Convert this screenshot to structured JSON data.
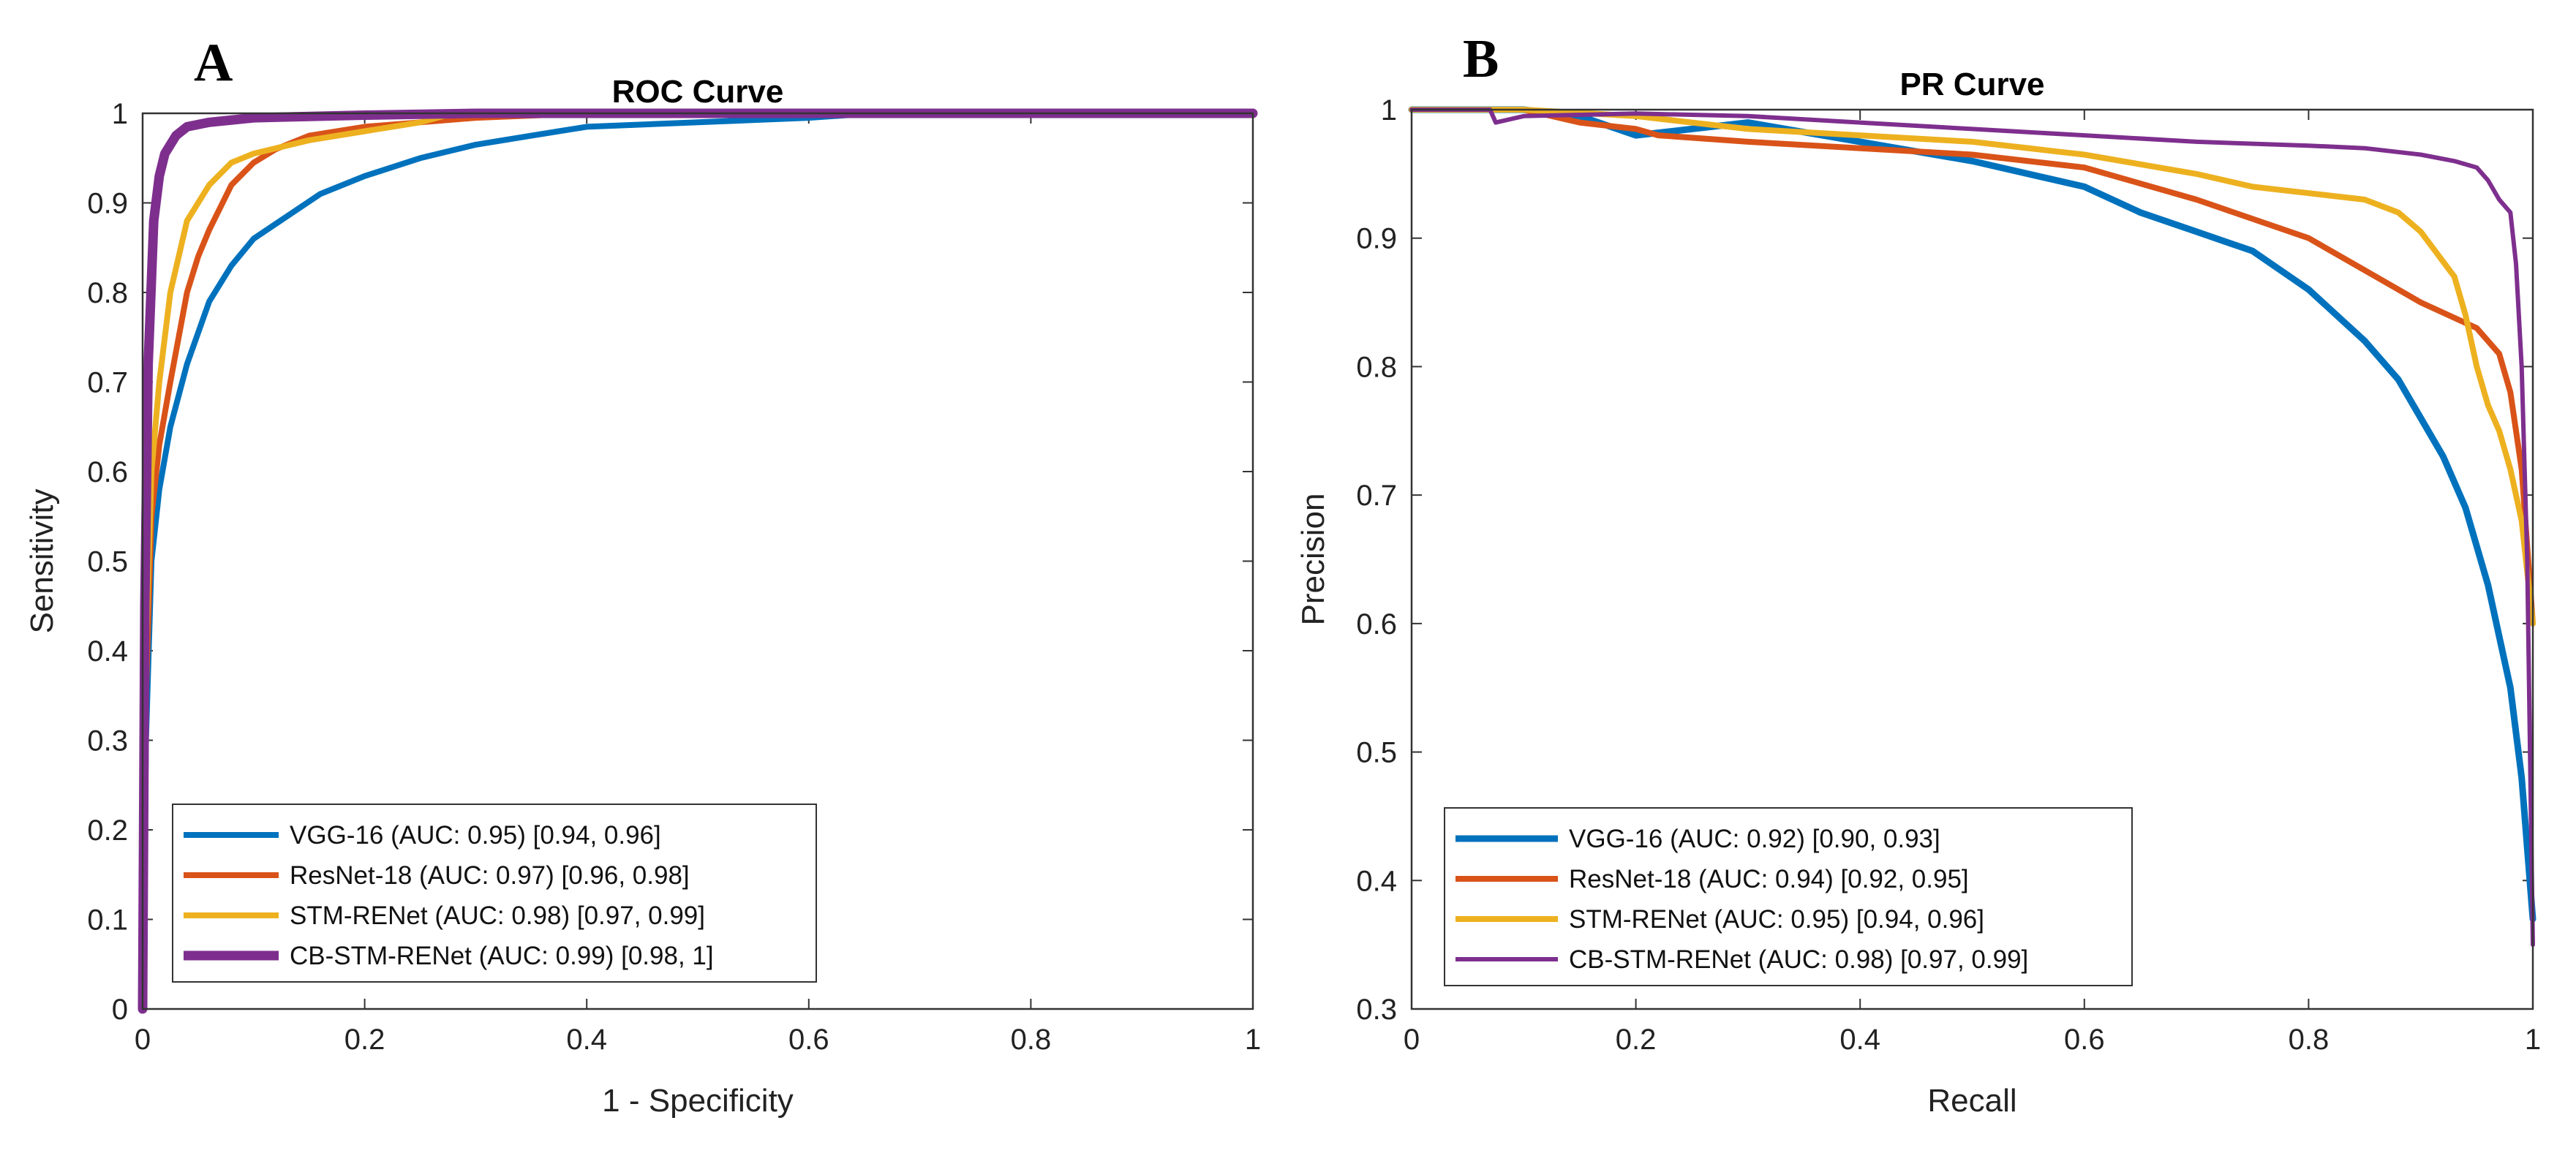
{
  "chart_data": [
    {
      "type": "line",
      "panel": "A",
      "title": "ROC Curve",
      "xlabel": "1 - Specificity",
      "ylabel": "Sensitivity",
      "xlim": [
        0,
        1
      ],
      "ylim": [
        0,
        1
      ],
      "x_ticks": [
        "0",
        "0.2",
        "0.4",
        "0.6",
        "0.8",
        "1"
      ],
      "y_ticks": [
        "0",
        "0.1",
        "0.2",
        "0.3",
        "0.4",
        "0.5",
        "0.6",
        "0.7",
        "0.8",
        "0.9",
        "1"
      ],
      "legend_position": "bottom-left",
      "series": [
        {
          "name": "VGG-16 (AUC: 0.95) [0.94, 0.96]",
          "color": "#0072BD",
          "x": [
            0,
            0.003,
            0.008,
            0.015,
            0.025,
            0.04,
            0.06,
            0.08,
            0.1,
            0.13,
            0.16,
            0.2,
            0.25,
            0.3,
            0.35,
            0.4,
            0.5,
            0.6,
            0.66,
            1
          ],
          "y": [
            0,
            0.3,
            0.5,
            0.58,
            0.65,
            0.72,
            0.79,
            0.83,
            0.86,
            0.885,
            0.91,
            0.93,
            0.95,
            0.965,
            0.975,
            0.985,
            0.99,
            0.995,
            1,
            1
          ]
        },
        {
          "name": "ResNet-18 (AUC: 0.97) [0.96, 0.98]",
          "color": "#D95319",
          "x": [
            0,
            0.003,
            0.008,
            0.015,
            0.025,
            0.04,
            0.05,
            0.06,
            0.08,
            0.1,
            0.12,
            0.15,
            0.2,
            0.25,
            0.3,
            0.4,
            1
          ],
          "y": [
            0,
            0.35,
            0.55,
            0.63,
            0.7,
            0.8,
            0.84,
            0.87,
            0.92,
            0.945,
            0.96,
            0.975,
            0.985,
            0.99,
            0.995,
            1,
            1
          ]
        },
        {
          "name": "STM-RENet (AUC: 0.98) [0.97, 0.99]",
          "color": "#EDB120",
          "x": [
            0,
            0.003,
            0.008,
            0.015,
            0.025,
            0.04,
            0.06,
            0.08,
            0.1,
            0.15,
            0.2,
            0.25,
            0.28,
            1
          ],
          "y": [
            0,
            0.4,
            0.6,
            0.7,
            0.8,
            0.88,
            0.92,
            0.945,
            0.955,
            0.97,
            0.98,
            0.99,
            1,
            1
          ]
        },
        {
          "name": "CB-STM-RENet (AUC: 0.99) [0.98, 1]",
          "color": "#7E2F8E",
          "x": [
            0,
            0.002,
            0.005,
            0.01,
            0.015,
            0.02,
            0.03,
            0.04,
            0.06,
            0.1,
            0.2,
            0.3,
            1
          ],
          "y": [
            0,
            0.45,
            0.72,
            0.88,
            0.93,
            0.955,
            0.975,
            0.985,
            0.99,
            0.995,
            0.998,
            1,
            1
          ]
        }
      ]
    },
    {
      "type": "line",
      "panel": "B",
      "title": "PR Curve",
      "xlabel": "Recall",
      "ylabel": "Precision",
      "xlim": [
        0,
        1
      ],
      "ylim": [
        0.3,
        1
      ],
      "x_ticks": [
        "0",
        "0.2",
        "0.4",
        "0.6",
        "0.8",
        "1"
      ],
      "y_ticks": [
        "0.3",
        "0.4",
        "0.5",
        "0.6",
        "0.7",
        "0.8",
        "0.9",
        "1"
      ],
      "legend_position": "bottom-left",
      "series": [
        {
          "name": "VGG-16 (AUC: 0.92) [0.90, 0.93]",
          "color": "#0072BD",
          "x": [
            0,
            0.1,
            0.15,
            0.2,
            0.25,
            0.3,
            0.4,
            0.5,
            0.6,
            0.65,
            0.7,
            0.75,
            0.8,
            0.85,
            0.88,
            0.9,
            0.92,
            0.94,
            0.96,
            0.98,
            0.99,
            1
          ],
          "y": [
            1,
            1,
            0.995,
            0.98,
            0.985,
            0.99,
            0.975,
            0.96,
            0.94,
            0.92,
            0.905,
            0.89,
            0.86,
            0.82,
            0.79,
            0.76,
            0.73,
            0.69,
            0.63,
            0.55,
            0.48,
            0.37
          ]
        },
        {
          "name": "ResNet-18 (AUC: 0.94) [0.92, 0.95]",
          "color": "#D95319",
          "x": [
            0,
            0.1,
            0.15,
            0.2,
            0.22,
            0.3,
            0.4,
            0.5,
            0.6,
            0.7,
            0.8,
            0.85,
            0.9,
            0.95,
            0.97,
            0.98,
            0.99,
            1
          ],
          "y": [
            1,
            1,
            0.99,
            0.985,
            0.98,
            0.975,
            0.97,
            0.965,
            0.955,
            0.93,
            0.9,
            0.875,
            0.85,
            0.83,
            0.81,
            0.78,
            0.72,
            0.6
          ]
        },
        {
          "name": "STM-RENet (AUC: 0.95) [0.94, 0.96]",
          "color": "#EDB120",
          "x": [
            0,
            0.1,
            0.2,
            0.3,
            0.4,
            0.5,
            0.6,
            0.7,
            0.75,
            0.8,
            0.85,
            0.88,
            0.9,
            0.93,
            0.94,
            0.95,
            0.96,
            0.97,
            0.98,
            0.99,
            1
          ],
          "y": [
            1,
            1,
            0.995,
            0.985,
            0.98,
            0.975,
            0.965,
            0.95,
            0.94,
            0.935,
            0.93,
            0.92,
            0.905,
            0.87,
            0.84,
            0.8,
            0.77,
            0.75,
            0.72,
            0.68,
            0.6
          ]
        },
        {
          "name": "CB-STM-RENet (AUC: 0.98) [0.97, 0.99]",
          "color": "#7E2F8E",
          "x": [
            0,
            0.07,
            0.075,
            0.1,
            0.2,
            0.3,
            0.4,
            0.5,
            0.6,
            0.7,
            0.8,
            0.85,
            0.9,
            0.93,
            0.95,
            0.96,
            0.97,
            0.98,
            0.985,
            0.99,
            0.995,
            1
          ],
          "y": [
            1,
            1,
            0.99,
            0.995,
            0.997,
            0.995,
            0.99,
            0.985,
            0.98,
            0.975,
            0.972,
            0.97,
            0.965,
            0.96,
            0.955,
            0.945,
            0.93,
            0.92,
            0.88,
            0.8,
            0.65,
            0.35
          ]
        }
      ]
    }
  ]
}
